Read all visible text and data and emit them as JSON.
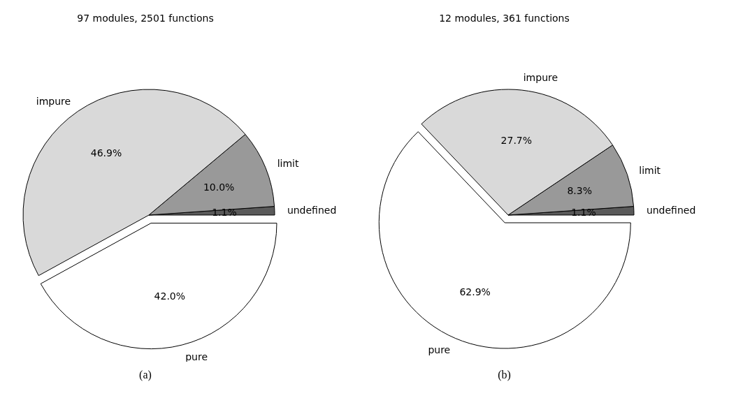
{
  "chart_data": [
    {
      "type": "pie",
      "title": "97 modules, 2501 functions",
      "categories": [
        "undefined",
        "limit",
        "impure",
        "pure"
      ],
      "values": [
        1.1,
        10.0,
        46.9,
        42.0
      ],
      "colors": [
        "#5a5a5a",
        "#999999",
        "#d9d9d9",
        "#ffffff"
      ],
      "value_labels": [
        "1.1%",
        "10.0%",
        "46.9%",
        "42.0%"
      ],
      "annotations": [
        "(a)"
      ]
    },
    {
      "type": "pie",
      "title": "12 modules, 361 functions",
      "categories": [
        "undefined",
        "limit",
        "impure",
        "pure"
      ],
      "values": [
        1.1,
        8.3,
        27.7,
        62.9
      ],
      "colors": [
        "#5a5a5a",
        "#999999",
        "#d9d9d9",
        "#ffffff"
      ],
      "value_labels": [
        "1.1%",
        "8.3%",
        "27.7%",
        "62.9%"
      ],
      "annotations": [
        "(b)"
      ]
    }
  ]
}
